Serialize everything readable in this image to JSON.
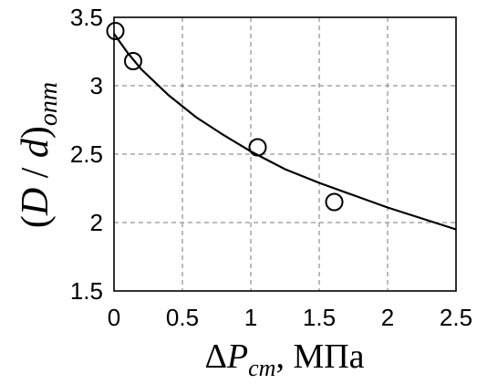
{
  "chart_data": {
    "type": "scatter",
    "xlabel": {
      "delta": "Δ",
      "var": "P",
      "sub": "cm",
      "rest": ", МПа"
    },
    "ylabel": {
      "open": "(",
      "num": "D",
      "slash": " / ",
      "den": "d",
      "close": ")",
      "sub": "onm"
    },
    "xlim": [
      0,
      2.5
    ],
    "ylim": [
      1.5,
      3.5
    ],
    "xticks": [
      "0",
      "0.5",
      "1",
      "1.5",
      "2",
      "2.5"
    ],
    "yticks": [
      "1.5",
      "2",
      "2.5",
      "3",
      "3.5"
    ],
    "xtick_values": [
      0,
      0.5,
      1,
      1.5,
      2,
      2.5
    ],
    "ytick_values": [
      1.5,
      2,
      2.5,
      3,
      3.5
    ],
    "grid": true,
    "series": [
      {
        "type": "scatter",
        "marker": "open-circle",
        "x": [
          0.01,
          0.14,
          1.05,
          1.61
        ],
        "y": [
          3.4,
          3.18,
          2.55,
          2.15
        ]
      },
      {
        "type": "line",
        "x": [
          0.0,
          0.1,
          0.2,
          0.4,
          0.6,
          0.8,
          1.0,
          1.25,
          1.5,
          1.75,
          2.0,
          2.25,
          2.5
        ],
        "y": [
          3.38,
          3.24,
          3.12,
          2.93,
          2.77,
          2.64,
          2.52,
          2.39,
          2.29,
          2.2,
          2.11,
          2.03,
          1.95
        ]
      }
    ]
  }
}
